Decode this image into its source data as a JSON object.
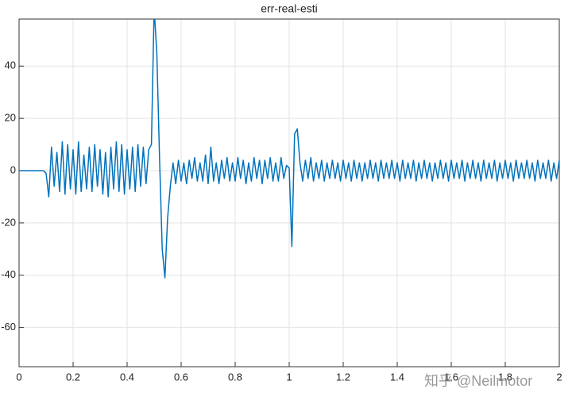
{
  "chart_data": {
    "type": "line",
    "title": "err-real-esti",
    "watermark": "知乎 @Neilmotor",
    "x": [
      0,
      0.01,
      0.02,
      0.03,
      0.04,
      0.05,
      0.06,
      0.07,
      0.08,
      0.09,
      0.1,
      0.11,
      0.12,
      0.13,
      0.14,
      0.15,
      0.16,
      0.17,
      0.18,
      0.19,
      0.2,
      0.21,
      0.22,
      0.23,
      0.24,
      0.25,
      0.26,
      0.27,
      0.28,
      0.29,
      0.3,
      0.31,
      0.32,
      0.33,
      0.34,
      0.35,
      0.36,
      0.37,
      0.38,
      0.39,
      0.4,
      0.41,
      0.42,
      0.43,
      0.44,
      0.45,
      0.46,
      0.47,
      0.48,
      0.49,
      0.5,
      0.51,
      0.52,
      0.53,
      0.54,
      0.55,
      0.56,
      0.57,
      0.58,
      0.59,
      0.6,
      0.61,
      0.62,
      0.63,
      0.64,
      0.65,
      0.66,
      0.67,
      0.68,
      0.69,
      0.7,
      0.71,
      0.72,
      0.73,
      0.74,
      0.75,
      0.76,
      0.77,
      0.78,
      0.79,
      0.8,
      0.81,
      0.82,
      0.83,
      0.84,
      0.85,
      0.86,
      0.87,
      0.88,
      0.89,
      0.9,
      0.91,
      0.92,
      0.93,
      0.94,
      0.95,
      0.96,
      0.97,
      0.98,
      0.99,
      1,
      1.01,
      1.02,
      1.03,
      1.04,
      1.05,
      1.06,
      1.07,
      1.08,
      1.09,
      1.1,
      1.11,
      1.12,
      1.13,
      1.14,
      1.15,
      1.16,
      1.17,
      1.18,
      1.19,
      1.2,
      1.21,
      1.22,
      1.23,
      1.24,
      1.25,
      1.26,
      1.27,
      1.28,
      1.29,
      1.3,
      1.31,
      1.32,
      1.33,
      1.34,
      1.35,
      1.36,
      1.37,
      1.38,
      1.39,
      1.4,
      1.41,
      1.42,
      1.43,
      1.44,
      1.45,
      1.46,
      1.47,
      1.48,
      1.49,
      1.5,
      1.51,
      1.52,
      1.53,
      1.54,
      1.55,
      1.56,
      1.57,
      1.58,
      1.59,
      1.6,
      1.61,
      1.62,
      1.63,
      1.64,
      1.65,
      1.66,
      1.67,
      1.68,
      1.69,
      1.7,
      1.71,
      1.72,
      1.73,
      1.74,
      1.75,
      1.76,
      1.77,
      1.78,
      1.79,
      1.8,
      1.81,
      1.82,
      1.83,
      1.84,
      1.85,
      1.86,
      1.87,
      1.88,
      1.89,
      1.9,
      1.91,
      1.92,
      1.93,
      1.94,
      1.95,
      1.96,
      1.97,
      1.98,
      1.99,
      2
    ],
    "series": [
      {
        "color": "#0072bd",
        "values": [
          0,
          0,
          0,
          0,
          0,
          0,
          0,
          0,
          0,
          0,
          -1,
          -10,
          9,
          -6,
          7,
          -8,
          11,
          -9,
          10,
          -7,
          8,
          -9,
          11,
          -8,
          6,
          -7,
          9,
          -8,
          10,
          -6,
          8,
          -9,
          7,
          -10,
          9,
          -7,
          11,
          -8,
          10,
          -9,
          8,
          -7,
          9,
          -8,
          10,
          -6,
          9,
          -5,
          8,
          10,
          62,
          45,
          5,
          -30,
          -41,
          -18,
          -6,
          3,
          -5,
          4,
          -4,
          3,
          -5,
          4,
          -3,
          5,
          -4,
          3,
          -4,
          6,
          -5,
          9,
          -4,
          3,
          -5,
          4,
          -3,
          5,
          -4,
          3,
          -4,
          5,
          -3,
          4,
          -5,
          3,
          -4,
          5,
          -3,
          4,
          -5,
          4,
          -3,
          5,
          -4,
          3,
          -4,
          5,
          -3,
          2,
          1,
          -29,
          14,
          16,
          3,
          -4,
          4,
          -3,
          5,
          -4,
          3,
          -3,
          4,
          -4,
          3,
          -3,
          4,
          -3,
          3,
          -4,
          4,
          -3,
          3,
          -4,
          4,
          -3,
          3,
          -4,
          3,
          -3,
          4,
          -3,
          3,
          -4,
          4,
          -3,
          3,
          -3,
          4,
          -3,
          3,
          -4,
          4,
          -3,
          3,
          -3,
          4,
          -4,
          3,
          -3,
          4,
          -3,
          3,
          -4,
          3,
          -3,
          4,
          -3,
          3,
          -4,
          4,
          -3,
          3,
          -3,
          4,
          -4,
          3,
          -3,
          4,
          -3,
          3,
          -4,
          4,
          -3,
          3,
          -3,
          4,
          -4,
          3,
          -3,
          4,
          -3,
          3,
          -4,
          4,
          -3,
          3,
          -3,
          4,
          -3,
          3,
          -4,
          4,
          -3,
          3,
          -3,
          4,
          -4,
          3,
          -3,
          4
        ]
      }
    ],
    "xlim": [
      0,
      2
    ],
    "xticks": [
      0,
      0.2,
      0.4,
      0.6,
      0.8,
      1,
      1.2,
      1.4,
      1.6,
      1.8,
      2
    ],
    "ylim": [
      -75,
      58
    ],
    "yticks": [
      -60,
      -40,
      -20,
      0,
      20,
      40
    ],
    "grid": true
  }
}
